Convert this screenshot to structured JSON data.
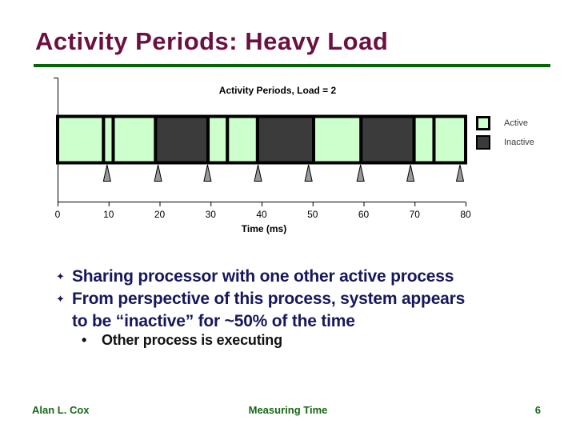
{
  "slide": {
    "title": "Activity Periods: Heavy Load",
    "bullets": {
      "marker": "✦",
      "items": [
        {
          "lines": [
            "Sharing processor with one other active process"
          ]
        },
        {
          "lines": [
            "From perspective of this process, system appears",
            "to be “inactive” for ~50% of the time"
          ]
        }
      ],
      "sub_marker": "•",
      "sub_items": [
        "Other process is executing"
      ]
    },
    "footer": {
      "author": "Alan L. Cox",
      "center": "Measuring Time",
      "page": "6"
    }
  },
  "colors": {
    "title": "#6b1040",
    "rule": "#056605",
    "bullet_text": "#17175c",
    "sub_bullet_text": "#111111",
    "footer_text": "#156915"
  },
  "chart_data": {
    "type": "bar",
    "title": "Activity Periods, Load = 2",
    "xlabel": "Time (ms)",
    "xlim": [
      0,
      80
    ],
    "xticks": [
      0,
      10,
      20,
      30,
      40,
      50,
      60,
      70,
      80
    ],
    "legend": [
      {
        "label": "Active",
        "state": "active"
      },
      {
        "label": "Inactive",
        "state": "inactive"
      }
    ],
    "colors": {
      "active": "#ccffcc",
      "inactive": "#3b3b3b",
      "arrow_fill": "#9a9a9a",
      "axis": "#000000"
    },
    "segments": [
      {
        "state": "active",
        "start": 0,
        "end": 9
      },
      {
        "state": "active",
        "start": 9,
        "end": 10.9
      },
      {
        "state": "active",
        "start": 10.9,
        "end": 19.2
      },
      {
        "state": "inactive",
        "start": 19.2,
        "end": 29.5
      },
      {
        "state": "active",
        "start": 29.5,
        "end": 33.3
      },
      {
        "state": "active",
        "start": 33.3,
        "end": 39.2
      },
      {
        "state": "inactive",
        "start": 39.2,
        "end": 50.2
      },
      {
        "state": "active",
        "start": 50.2,
        "end": 59.5
      },
      {
        "state": "inactive",
        "start": 59.5,
        "end": 69.9
      },
      {
        "state": "active",
        "start": 69.9,
        "end": 73.8
      },
      {
        "state": "active",
        "start": 73.8,
        "end": 80
      }
    ],
    "interrupt_arrows_ms": [
      9.7,
      19.7,
      29.4,
      39.3,
      49.2,
      59.4,
      69.2,
      78.9
    ]
  }
}
